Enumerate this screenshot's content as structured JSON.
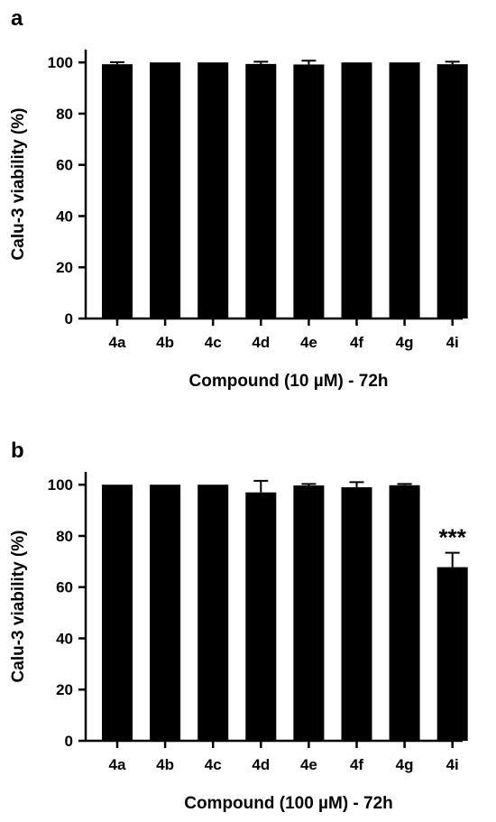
{
  "chart_data": [
    {
      "type": "bar",
      "panel_label": "a",
      "categories": [
        "4a",
        "4b",
        "4c",
        "4d",
        "4e",
        "4f",
        "4g",
        "4i"
      ],
      "values": [
        99.3,
        100,
        100,
        99.4,
        99.2,
        100,
        100,
        99.3
      ],
      "errors": [
        0.8,
        0,
        0,
        0.9,
        1.5,
        0,
        0,
        1.0
      ],
      "annotations": [
        "",
        "",
        "",
        "",
        "",
        "",
        "",
        ""
      ],
      "xlabel": "Compound (10 µM) - 72h",
      "ylabel": "Calu-3 viability (%)",
      "ylim": [
        0,
        105
      ],
      "yticks": [
        "0",
        "20",
        "40",
        "60",
        "80",
        "100"
      ],
      "bar_color": "#000000",
      "grid": false,
      "legend": false
    },
    {
      "type": "bar",
      "panel_label": "b",
      "categories": [
        "4a",
        "4b",
        "4c",
        "4d",
        "4e",
        "4f",
        "4g",
        "4i"
      ],
      "values": [
        100,
        100,
        100,
        97,
        99.7,
        99,
        99.8,
        67.8
      ],
      "errors": [
        0,
        0,
        0,
        4.5,
        0.6,
        2.0,
        0.5,
        5.6
      ],
      "annotations": [
        "",
        "",
        "",
        "",
        "",
        "",
        "",
        "***"
      ],
      "xlabel": "Compound (100 µM) - 72h",
      "ylabel": "Calu-3 viability (%)",
      "ylim": [
        0,
        105
      ],
      "yticks": [
        "0",
        "20",
        "40",
        "60",
        "80",
        "100"
      ],
      "bar_color": "#000000",
      "grid": false,
      "legend": false
    }
  ]
}
